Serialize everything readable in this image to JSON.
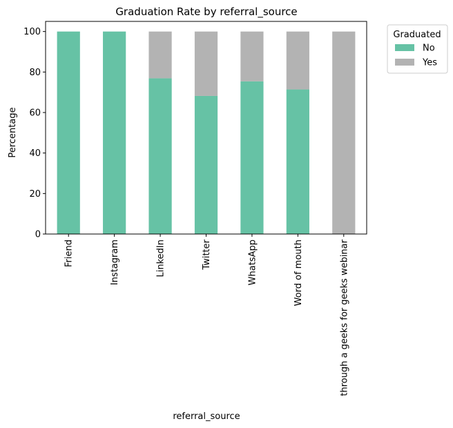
{
  "chart_data": {
    "type": "bar",
    "stacked": true,
    "title": "Graduation Rate by referral_source",
    "xlabel": "referral_source",
    "ylabel": "Percentage",
    "ylim": [
      0,
      105
    ],
    "yticks": [
      0,
      20,
      40,
      60,
      80,
      100
    ],
    "categories": [
      "Friend",
      "Instagram",
      "LinkedIn",
      "Twitter",
      "WhatsApp",
      "Word of mouth",
      "through a geeks for geeks webinar"
    ],
    "series": [
      {
        "name": "No",
        "color": "#66c2a5",
        "values": [
          100,
          100,
          76.9,
          68.2,
          75.4,
          71.4,
          0
        ]
      },
      {
        "name": "Yes",
        "color": "#b3b3b3",
        "values": [
          0,
          0,
          23.1,
          31.8,
          24.6,
          28.6,
          100
        ]
      }
    ],
    "legend": {
      "title": "Graduated",
      "placement": "outside upper-right"
    },
    "grid": false
  }
}
